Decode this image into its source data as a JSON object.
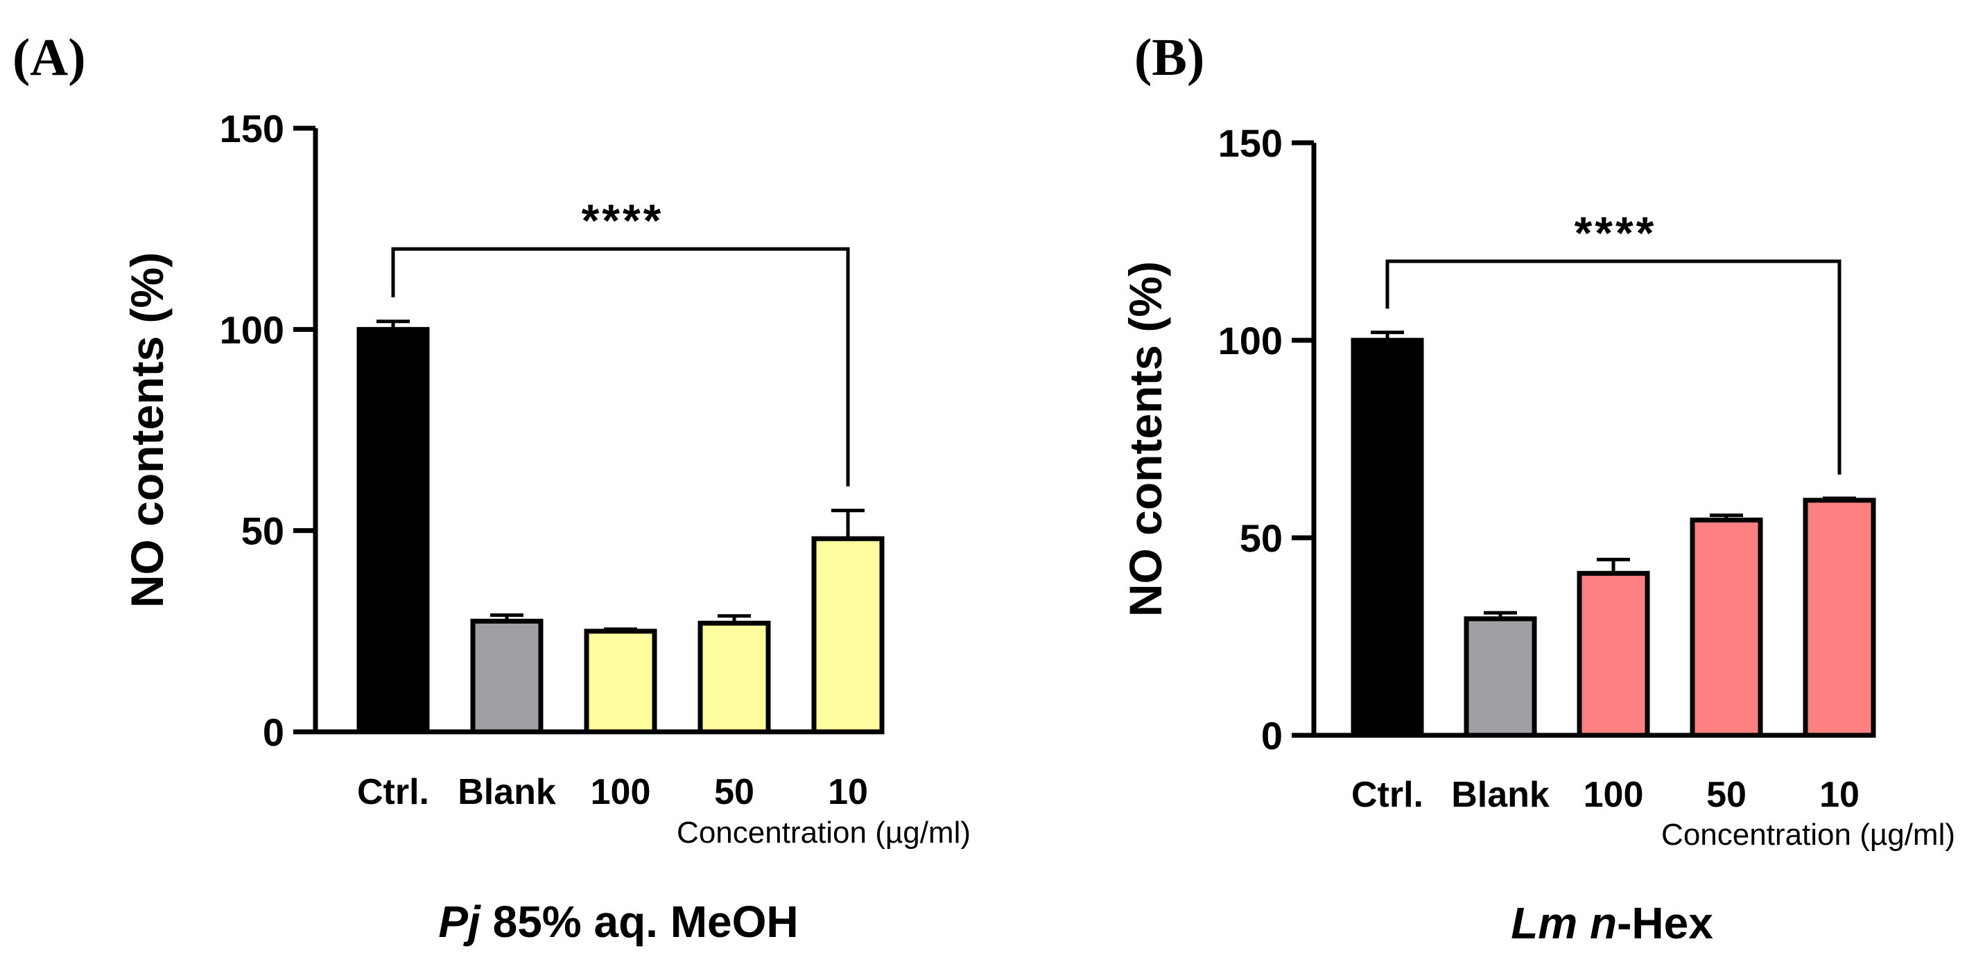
{
  "chart_data": [
    {
      "type": "bar",
      "panel_label": "(A)",
      "title_italic": "Pj",
      "title_rest": " 85% aq. MeOH",
      "ylabel": "NO contents (%)",
      "xlabel": "Concentration (µg/ml)",
      "ylim": [
        0,
        150
      ],
      "yticks": [
        0,
        50,
        100,
        150
      ],
      "categories": [
        "Ctrl.",
        "Blank",
        "100",
        "50",
        "10"
      ],
      "values": [
        100,
        27.5,
        25,
        27,
        48
      ],
      "errors": [
        2,
        1.5,
        0.5,
        1.8,
        7
      ],
      "colors": [
        "#000000",
        "#a0a0a4",
        "#fdfd9e",
        "#fdfd9e",
        "#fdfd9e"
      ],
      "significance": {
        "from": 0,
        "to": 4,
        "label": "****",
        "level": 120
      }
    },
    {
      "type": "bar",
      "panel_label": "(B)",
      "title_italic": "Lm n",
      "title_rest": "-Hex",
      "ylabel": "NO contents (%)",
      "xlabel": "Concentration (µg/ml)",
      "ylim": [
        0,
        150
      ],
      "yticks": [
        0,
        50,
        100,
        150
      ],
      "categories": [
        "Ctrl.",
        "Blank",
        "100",
        "50",
        "10"
      ],
      "values": [
        100,
        29.5,
        41,
        54.5,
        59.5
      ],
      "errors": [
        2,
        1.5,
        3.5,
        1.2,
        0.5
      ],
      "colors": [
        "#000000",
        "#a0a0a4",
        "#ff8080",
        "#ff8080",
        "#ff8080"
      ],
      "significance": {
        "from": 0,
        "to": 4,
        "label": "****",
        "level": 120
      }
    }
  ]
}
